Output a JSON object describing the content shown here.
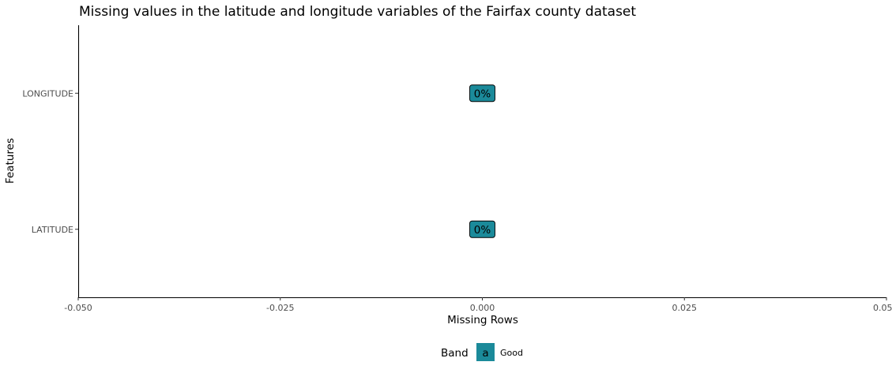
{
  "chart_data": {
    "type": "bar",
    "orientation": "horizontal",
    "title": "Missing values in the latitude and longitude variables of the Fairfax county dataset",
    "xlabel": "Missing Rows",
    "ylabel": "Features",
    "xlim": [
      -0.05,
      0.05
    ],
    "x_ticks": [
      -0.05,
      -0.025,
      0,
      0.025,
      0.05
    ],
    "x_tick_labels": [
      "-0.050",
      "-0.025",
      "0.000",
      "0.025",
      "0.050"
    ],
    "categories": [
      "LONGITUDE",
      "LATITUDE"
    ],
    "values": [
      0,
      0
    ],
    "data_labels": [
      "0%",
      "0%"
    ],
    "bands": [
      "Good",
      "Good"
    ],
    "grid": false,
    "legend": {
      "position": "bottom",
      "title": "Band",
      "key_text": "a",
      "entries": [
        {
          "label": "Good",
          "color": "#1b8a9a"
        }
      ]
    },
    "colors": {
      "Good": "#1b8a9a"
    }
  }
}
